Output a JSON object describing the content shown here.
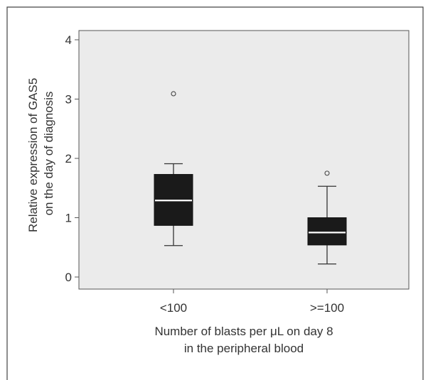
{
  "chart_data": {
    "type": "box",
    "ylabel": [
      "Relative expression of GAS5",
      "on the day of diagnosis"
    ],
    "xlabel": [
      "Number of blasts per μL on day 8",
      "in the peripheral blood"
    ],
    "ylim": [
      -0.2,
      4.3
    ],
    "yticks": [
      0,
      1,
      2,
      3,
      4
    ],
    "categories": [
      "<100",
      ">=100"
    ],
    "boxes": [
      {
        "category": "<100",
        "min": 0.53,
        "q1": 0.87,
        "median": 1.29,
        "q3": 1.73,
        "max": 1.91,
        "outliers": [
          3.09
        ]
      },
      {
        "category": ">=100",
        "min": 0.22,
        "q1": 0.54,
        "median": 0.75,
        "q3": 1.0,
        "max": 1.53,
        "outliers": [
          1.75
        ]
      }
    ],
    "grid": false,
    "colors": {
      "plot_bg": "#ebebeb",
      "box_fill": "#1a1a1a",
      "median": "#ffffff",
      "axis": "#555555",
      "text": "#333333"
    }
  }
}
